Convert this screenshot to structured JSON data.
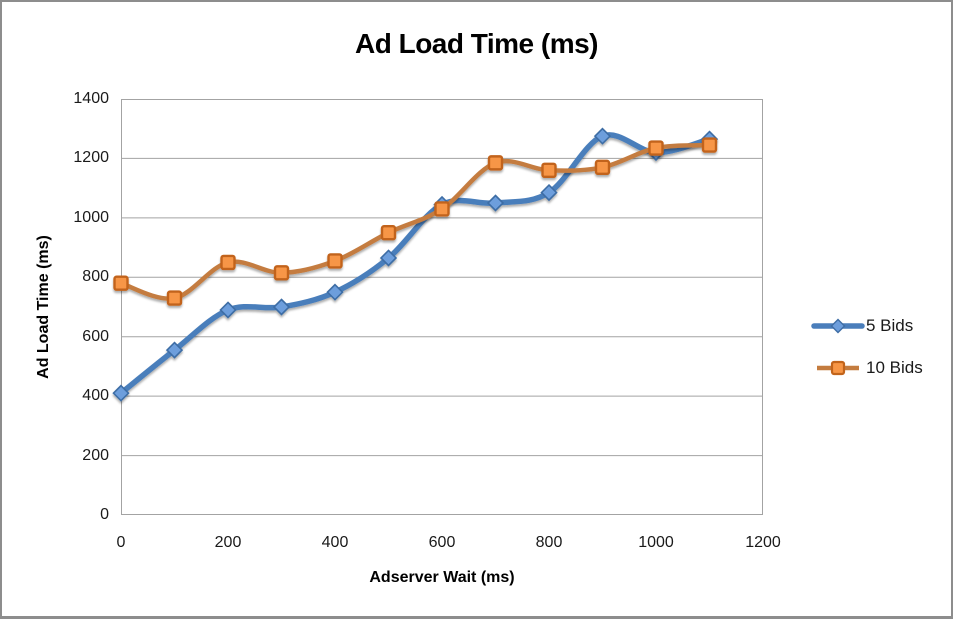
{
  "chart_data": {
    "type": "line",
    "title": "Ad Load Time (ms)",
    "xlabel": "Adserver Wait (ms)",
    "ylabel": "Ad Load Time (ms)",
    "x": [
      0,
      100,
      200,
      300,
      400,
      500,
      600,
      700,
      800,
      900,
      1000,
      1100
    ],
    "series": [
      {
        "name": "5 Bids",
        "marker": "diamond",
        "line_color": "#4A7EBB",
        "marker_fill": "#6D9EDC",
        "marker_stroke": "#3E6DA5",
        "values": [
          410,
          555,
          690,
          700,
          750,
          865,
          1045,
          1050,
          1085,
          1275,
          1220,
          1265
        ]
      },
      {
        "name": "10 Bids",
        "marker": "square",
        "line_color": "#C47C3F",
        "marker_fill": "#F79646",
        "marker_stroke": "#C2641B",
        "values": [
          780,
          730,
          850,
          815,
          855,
          950,
          1030,
          1185,
          1160,
          1170,
          1235,
          1245
        ]
      }
    ],
    "xlim": [
      0,
      1200
    ],
    "ylim": [
      0,
      1400
    ],
    "x_ticks": [
      0,
      200,
      400,
      600,
      800,
      1000,
      1200
    ],
    "y_ticks": [
      0,
      200,
      400,
      600,
      800,
      1000,
      1200,
      1400
    ],
    "grid": "horizontal",
    "legend_position": "right",
    "smooth_lines": true
  },
  "frame": {
    "background": "#FFFFFF",
    "border_color": "#8D8D8D",
    "grid_color": "#A3A3A3",
    "text_color": "#1A1A1A"
  }
}
